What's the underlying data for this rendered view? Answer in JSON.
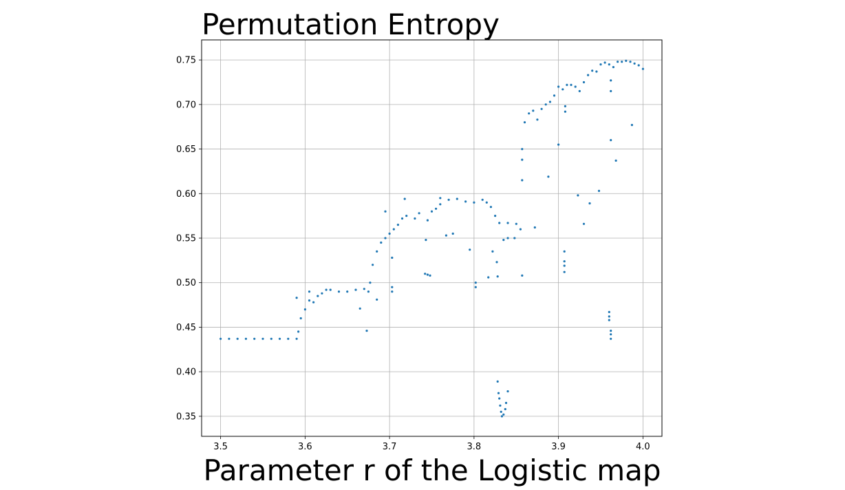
{
  "chart_data": {
    "type": "scatter",
    "title": "Permutation Entropy",
    "xlabel": "Parameter r of the Logistic map",
    "ylabel": "",
    "xlim": [
      3.4775,
      4.0225
    ],
    "ylim": [
      0.3275,
      0.7725
    ],
    "xticks": [
      "3.5",
      "3.6",
      "3.7",
      "3.8",
      "3.9",
      "4.0"
    ],
    "yticks": [
      "0.35",
      "0.40",
      "0.45",
      "0.50",
      "0.55",
      "0.60",
      "0.65",
      "0.70",
      "0.75"
    ],
    "grid": true,
    "legend": "none",
    "marker_color": "#1f77b4",
    "series": [
      {
        "name": "",
        "points": [
          [
            3.5,
            0.437
          ],
          [
            3.51,
            0.437
          ],
          [
            3.52,
            0.437
          ],
          [
            3.53,
            0.437
          ],
          [
            3.54,
            0.437
          ],
          [
            3.55,
            0.437
          ],
          [
            3.56,
            0.437
          ],
          [
            3.57,
            0.437
          ],
          [
            3.58,
            0.437
          ],
          [
            3.59,
            0.437
          ],
          [
            3.592,
            0.445
          ],
          [
            3.595,
            0.46
          ],
          [
            3.6,
            0.47
          ],
          [
            3.605,
            0.48
          ],
          [
            3.61,
            0.478
          ],
          [
            3.615,
            0.485
          ],
          [
            3.62,
            0.488
          ],
          [
            3.625,
            0.492
          ],
          [
            3.63,
            0.492
          ],
          [
            3.64,
            0.49
          ],
          [
            3.65,
            0.49
          ],
          [
            3.66,
            0.492
          ],
          [
            3.67,
            0.493
          ],
          [
            3.675,
            0.49
          ],
          [
            3.677,
            0.5
          ],
          [
            3.68,
            0.52
          ],
          [
            3.685,
            0.535
          ],
          [
            3.69,
            0.545
          ],
          [
            3.695,
            0.55
          ],
          [
            3.7,
            0.555
          ],
          [
            3.705,
            0.56
          ],
          [
            3.71,
            0.565
          ],
          [
            3.715,
            0.572
          ],
          [
            3.72,
            0.575
          ],
          [
            3.73,
            0.572
          ],
          [
            3.735,
            0.578
          ],
          [
            3.745,
            0.57
          ],
          [
            3.75,
            0.58
          ],
          [
            3.755,
            0.583
          ],
          [
            3.76,
            0.588
          ],
          [
            3.77,
            0.593
          ],
          [
            3.78,
            0.594
          ],
          [
            3.79,
            0.591
          ],
          [
            3.8,
            0.59
          ],
          [
            3.81,
            0.593
          ],
          [
            3.815,
            0.59
          ],
          [
            3.82,
            0.585
          ],
          [
            3.825,
            0.575
          ],
          [
            3.83,
            0.567
          ],
          [
            3.84,
            0.567
          ],
          [
            3.85,
            0.566
          ],
          [
            3.855,
            0.56
          ],
          [
            3.857,
            0.65
          ],
          [
            3.86,
            0.68
          ],
          [
            3.865,
            0.69
          ],
          [
            3.87,
            0.693
          ],
          [
            3.875,
            0.683
          ],
          [
            3.88,
            0.695
          ],
          [
            3.885,
            0.7
          ],
          [
            3.89,
            0.703
          ],
          [
            3.895,
            0.71
          ],
          [
            3.9,
            0.72
          ],
          [
            3.905,
            0.717
          ],
          [
            3.91,
            0.722
          ],
          [
            3.915,
            0.722
          ],
          [
            3.92,
            0.72
          ],
          [
            3.925,
            0.715
          ],
          [
            3.93,
            0.725
          ],
          [
            3.935,
            0.733
          ],
          [
            3.94,
            0.738
          ],
          [
            3.945,
            0.737
          ],
          [
            3.95,
            0.745
          ],
          [
            3.955,
            0.747
          ],
          [
            3.96,
            0.745
          ],
          [
            3.965,
            0.742
          ],
          [
            3.97,
            0.748
          ],
          [
            3.975,
            0.748
          ],
          [
            3.98,
            0.749
          ],
          [
            3.985,
            0.748
          ],
          [
            3.99,
            0.746
          ],
          [
            3.995,
            0.744
          ],
          [
            4.0,
            0.74
          ],
          [
            3.59,
            0.483
          ],
          [
            3.605,
            0.49
          ],
          [
            3.665,
            0.471
          ],
          [
            3.673,
            0.446
          ],
          [
            3.685,
            0.481
          ],
          [
            3.695,
            0.58
          ],
          [
            3.703,
            0.528
          ],
          [
            3.703,
            0.495
          ],
          [
            3.703,
            0.49
          ],
          [
            3.718,
            0.594
          ],
          [
            3.743,
            0.548
          ],
          [
            3.742,
            0.51
          ],
          [
            3.745,
            0.509
          ],
          [
            3.748,
            0.508
          ],
          [
            3.76,
            0.595
          ],
          [
            3.767,
            0.553
          ],
          [
            3.775,
            0.555
          ],
          [
            3.795,
            0.537
          ],
          [
            3.802,
            0.5
          ],
          [
            3.802,
            0.495
          ],
          [
            3.817,
            0.506
          ],
          [
            3.822,
            0.535
          ],
          [
            3.827,
            0.523
          ],
          [
            3.828,
            0.507
          ],
          [
            3.828,
            0.389
          ],
          [
            3.829,
            0.376
          ],
          [
            3.83,
            0.37
          ],
          [
            3.831,
            0.362
          ],
          [
            3.832,
            0.355
          ],
          [
            3.833,
            0.35
          ],
          [
            3.835,
            0.352
          ],
          [
            3.837,
            0.358
          ],
          [
            3.838,
            0.365
          ],
          [
            3.84,
            0.378
          ],
          [
            3.835,
            0.548
          ],
          [
            3.84,
            0.55
          ],
          [
            3.848,
            0.55
          ],
          [
            3.857,
            0.508
          ],
          [
            3.857,
            0.615
          ],
          [
            3.857,
            0.638
          ],
          [
            3.872,
            0.562
          ],
          [
            3.888,
            0.619
          ],
          [
            3.9,
            0.655
          ],
          [
            3.907,
            0.535
          ],
          [
            3.907,
            0.524
          ],
          [
            3.907,
            0.519
          ],
          [
            3.907,
            0.512
          ],
          [
            3.908,
            0.692
          ],
          [
            3.908,
            0.698
          ],
          [
            3.923,
            0.598
          ],
          [
            3.93,
            0.566
          ],
          [
            3.937,
            0.589
          ],
          [
            3.948,
            0.603
          ],
          [
            3.96,
            0.467
          ],
          [
            3.96,
            0.462
          ],
          [
            3.96,
            0.458
          ],
          [
            3.962,
            0.446
          ],
          [
            3.962,
            0.442
          ],
          [
            3.962,
            0.437
          ],
          [
            3.962,
            0.66
          ],
          [
            3.968,
            0.637
          ],
          [
            3.987,
            0.677
          ],
          [
            3.962,
            0.715
          ],
          [
            3.962,
            0.727
          ]
        ]
      }
    ]
  }
}
